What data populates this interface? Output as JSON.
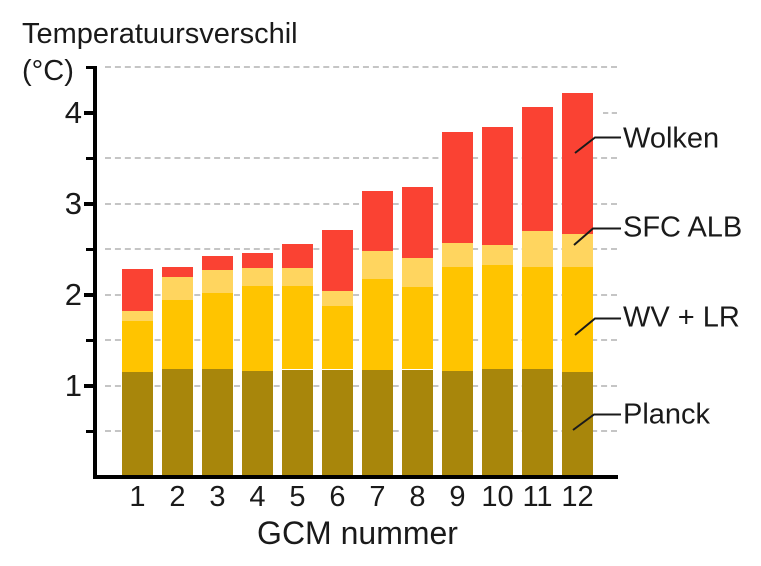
{
  "title": {
    "line1": "Temperatuursverschil",
    "line2": "(°C)"
  },
  "x_axis": {
    "label": "GCM nummer"
  },
  "annotations": {
    "wolken": "Wolken",
    "sfc_alb": "SFC ALB",
    "wv_lr": "WV + LR",
    "planck": "Planck"
  },
  "colors": {
    "planck": "#A8860B",
    "wv_lr": "#FFC400",
    "sfc_alb": "#FFD55F",
    "wolken": "#FA4233",
    "axis": "#000000",
    "gridline": "#C5C5C5",
    "text": "#1A1A1A"
  },
  "chart_data": {
    "type": "bar",
    "stacked": true,
    "title": "Temperatuursverschil (°C)",
    "xlabel": "GCM nummer",
    "ylabel": "Temperatuursverschil (°C)",
    "categories": [
      "1",
      "2",
      "3",
      "4",
      "5",
      "6",
      "7",
      "8",
      "9",
      "10",
      "11",
      "12"
    ],
    "series": [
      {
        "name": "Planck",
        "color": "#A8860B",
        "values": [
          1.15,
          1.19,
          1.19,
          1.16,
          1.18,
          1.18,
          1.18,
          1.18,
          1.16,
          1.19,
          1.19,
          1.15
        ]
      },
      {
        "name": "WV + LR",
        "color": "#FFC400",
        "values": [
          0.56,
          0.75,
          0.83,
          0.94,
          0.92,
          0.7,
          0.99,
          0.91,
          1.15,
          1.14,
          1.12,
          1.15
        ]
      },
      {
        "name": "SFC ALB",
        "color": "#FFD55F",
        "values": [
          0.11,
          0.25,
          0.25,
          0.19,
          0.19,
          0.16,
          0.31,
          0.31,
          0.26,
          0.22,
          0.39,
          0.37
        ]
      },
      {
        "name": "Wolken",
        "color": "#FA4233",
        "values": [
          0.46,
          0.12,
          0.16,
          0.17,
          0.27,
          0.67,
          0.66,
          0.78,
          1.22,
          1.29,
          1.36,
          1.54
        ]
      }
    ],
    "totals": [
      2.28,
      2.31,
      2.43,
      2.46,
      2.56,
      2.71,
      3.14,
      3.18,
      3.79,
      3.84,
      4.06,
      4.21
    ],
    "ylim": [
      0,
      4.5
    ],
    "yticks_labeled": [
      1,
      2,
      3,
      4
    ],
    "yticks_minor": [
      0.5,
      1.5,
      2.5,
      3.5,
      4.5
    ],
    "gridlines": [
      0.5,
      1,
      1.5,
      2,
      2.5,
      3,
      3.5,
      4.5
    ],
    "gridlines_stub_right": [
      4
    ],
    "grid_style": "dashed",
    "legend_position": "right-annotations"
  }
}
